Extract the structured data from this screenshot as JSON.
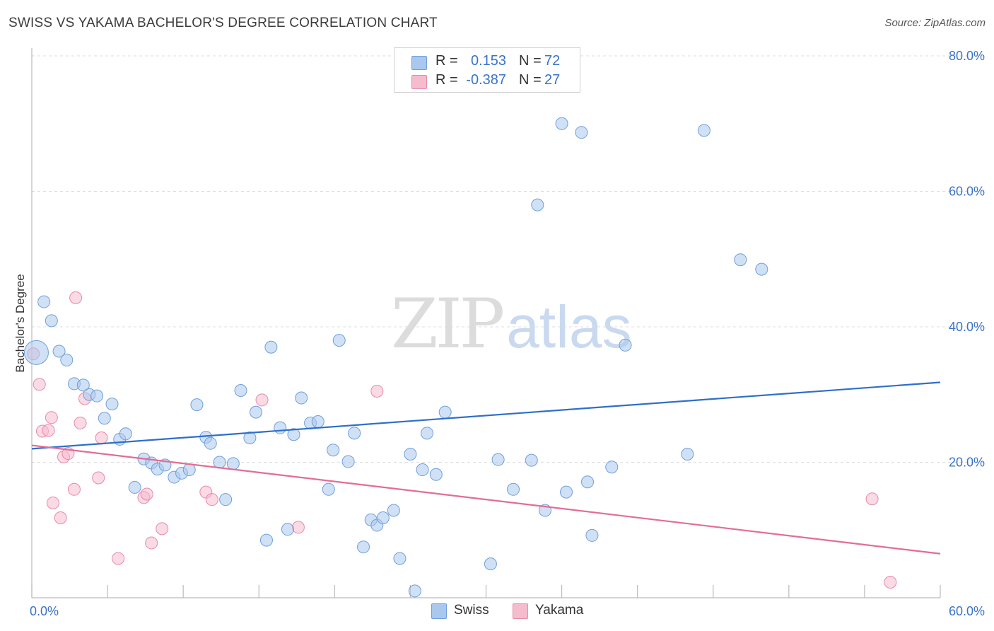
{
  "header": {
    "title": "SWISS VS YAKAMA BACHELOR'S DEGREE CORRELATION CHART",
    "source": "Source: ZipAtlas.com"
  },
  "watermark": {
    "zip": "ZIP",
    "atlas": "atlas"
  },
  "legend": {
    "rows": [
      {
        "r_label": "R =",
        "r_value": "0.153",
        "n_label": "N =",
        "n_value": "72",
        "color": "#aac8ee",
        "border": "#6f9fdc"
      },
      {
        "r_label": "R =",
        "r_value": "-0.387",
        "n_label": "N =",
        "n_value": "27",
        "color": "#f5bccd",
        "border": "#e88aa8"
      }
    ]
  },
  "bottom_legend": [
    {
      "label": "Swiss",
      "color": "#aac8ee",
      "border": "#6f9fdc"
    },
    {
      "label": "Yakama",
      "color": "#f5bccd",
      "border": "#e88aa8"
    }
  ],
  "colors": {
    "swiss_fill": "rgba(170,200,238,0.55)",
    "swiss_stroke": "#6f9fdc",
    "swiss_line": "#2f6fca",
    "yakama_fill": "rgba(245,188,205,0.55)",
    "yakama_stroke": "#e88aa8",
    "yakama_line": "#e36c95",
    "grid": "#dddddd",
    "axis_text": "#3a73c9"
  },
  "chart_data": {
    "type": "scatter",
    "title": "SWISS VS YAKAMA BACHELOR'S DEGREE CORRELATION CHART",
    "xlabel": "",
    "ylabel": "Bachelor's Degree",
    "xlim": [
      0,
      60
    ],
    "ylim": [
      0,
      80
    ],
    "x_tick_labels": [
      "0.0%",
      "60.0%"
    ],
    "y_ticks": [
      {
        "value": 20,
        "label": "20.0%"
      },
      {
        "value": 40,
        "label": "40.0%"
      },
      {
        "value": 60,
        "label": "60.0%"
      },
      {
        "value": 80,
        "label": "80.0%"
      }
    ],
    "grid": "horizontal-dashed",
    "legend_position": "top-center",
    "series": [
      {
        "name": "Swiss",
        "r": 0.153,
        "n": 72,
        "trend": {
          "x": [
            0,
            60
          ],
          "y": [
            22.0,
            31.8
          ]
        },
        "points": [
          [
            0.3,
            36.2,
            "big"
          ],
          [
            0.8,
            43.7
          ],
          [
            1.3,
            40.9
          ],
          [
            1.8,
            36.4
          ],
          [
            2.3,
            35.1
          ],
          [
            2.8,
            31.6
          ],
          [
            3.4,
            31.4
          ],
          [
            3.8,
            30.0
          ],
          [
            4.3,
            29.8
          ],
          [
            4.8,
            26.5
          ],
          [
            5.3,
            28.6
          ],
          [
            5.8,
            23.4
          ],
          [
            6.2,
            24.2
          ],
          [
            6.8,
            16.3
          ],
          [
            7.4,
            20.5
          ],
          [
            7.9,
            19.9
          ],
          [
            8.3,
            19.0
          ],
          [
            8.8,
            19.6
          ],
          [
            9.4,
            17.8
          ],
          [
            9.9,
            18.4
          ],
          [
            10.4,
            18.9
          ],
          [
            10.9,
            28.5
          ],
          [
            11.5,
            23.7
          ],
          [
            11.8,
            22.8
          ],
          [
            12.4,
            20.0
          ],
          [
            12.8,
            14.5
          ],
          [
            13.3,
            19.8
          ],
          [
            13.8,
            30.6
          ],
          [
            14.4,
            23.6
          ],
          [
            14.8,
            27.4
          ],
          [
            15.5,
            8.5
          ],
          [
            15.8,
            37.0
          ],
          [
            16.4,
            25.1
          ],
          [
            16.9,
            10.1
          ],
          [
            17.3,
            24.1
          ],
          [
            17.8,
            29.5
          ],
          [
            18.4,
            25.8
          ],
          [
            18.9,
            26.0
          ],
          [
            19.6,
            16.0
          ],
          [
            19.9,
            21.8
          ],
          [
            20.3,
            38.0
          ],
          [
            20.9,
            20.1
          ],
          [
            21.3,
            24.3
          ],
          [
            21.9,
            7.5
          ],
          [
            22.4,
            11.5
          ],
          [
            22.8,
            10.7
          ],
          [
            23.2,
            11.8
          ],
          [
            23.9,
            12.9
          ],
          [
            24.3,
            5.8
          ],
          [
            25.0,
            21.2
          ],
          [
            25.3,
            1.0
          ],
          [
            25.8,
            18.9
          ],
          [
            26.1,
            24.3
          ],
          [
            26.7,
            18.2
          ],
          [
            27.3,
            27.4
          ],
          [
            30.3,
            5.0
          ],
          [
            30.8,
            20.4
          ],
          [
            31.8,
            16.0
          ],
          [
            33.0,
            20.3
          ],
          [
            33.4,
            58.0
          ],
          [
            33.9,
            12.9
          ],
          [
            35.0,
            70.0
          ],
          [
            35.3,
            15.6
          ],
          [
            36.3,
            68.7
          ],
          [
            36.7,
            17.1
          ],
          [
            37.0,
            9.2
          ],
          [
            38.3,
            19.3
          ],
          [
            39.2,
            37.3
          ],
          [
            43.3,
            21.2
          ],
          [
            44.4,
            69.0
          ],
          [
            46.8,
            49.9
          ],
          [
            48.2,
            48.5
          ]
        ]
      },
      {
        "name": "Yakama",
        "r": -0.387,
        "n": 27,
        "trend": {
          "x": [
            0,
            60
          ],
          "y": [
            22.5,
            6.5
          ]
        },
        "points": [
          [
            0.1,
            36.0
          ],
          [
            0.5,
            31.5
          ],
          [
            0.7,
            24.6
          ],
          [
            1.1,
            24.7
          ],
          [
            1.3,
            26.6
          ],
          [
            1.4,
            14.0
          ],
          [
            1.9,
            11.8
          ],
          [
            2.1,
            20.8
          ],
          [
            2.4,
            21.3
          ],
          [
            2.8,
            16.0
          ],
          [
            2.9,
            44.3
          ],
          [
            3.2,
            25.8
          ],
          [
            3.5,
            29.4
          ],
          [
            4.4,
            17.7
          ],
          [
            4.6,
            23.6
          ],
          [
            5.7,
            5.8
          ],
          [
            7.4,
            14.8
          ],
          [
            7.6,
            15.3
          ],
          [
            7.9,
            8.1
          ],
          [
            8.6,
            10.2
          ],
          [
            11.5,
            15.6
          ],
          [
            11.9,
            14.5
          ],
          [
            15.2,
            29.2
          ],
          [
            17.6,
            10.4
          ],
          [
            22.8,
            30.5
          ],
          [
            55.5,
            14.6
          ],
          [
            56.7,
            2.3
          ]
        ]
      }
    ]
  }
}
